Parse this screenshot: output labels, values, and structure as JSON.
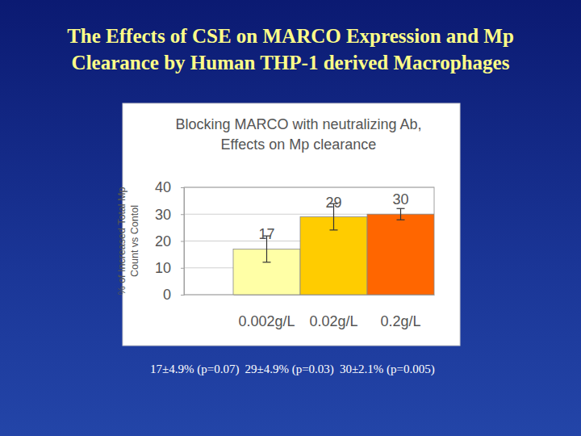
{
  "slide_title": [
    "The Effects of CSE on MARCO Expression and Mp",
    "Clearance by Human THP-1 derived Macrophages"
  ],
  "caption": [
    "17±4.9% (p=0.07)",
    "29±4.9% (p=0.03)",
    "30±2.1% (p=0.005)"
  ],
  "chart_data": {
    "type": "bar",
    "title": "Blocking MARCO with neutralizing Ab, Effects on Mp clearance",
    "y_label": "% of Increased Total Mp Count vs Contol",
    "categories": [
      "0.002g/L",
      "0.02g/L",
      "0.2g/L"
    ],
    "values": [
      17,
      29,
      30
    ],
    "errors": [
      4.9,
      4.9,
      2.1
    ],
    "colors": [
      "#ffffa6",
      "#ffcc00",
      "#ff6600"
    ],
    "ylim": [
      0,
      40
    ],
    "yticks": [
      0,
      10,
      20,
      30,
      40
    ],
    "grid": true,
    "data_labels": true
  }
}
